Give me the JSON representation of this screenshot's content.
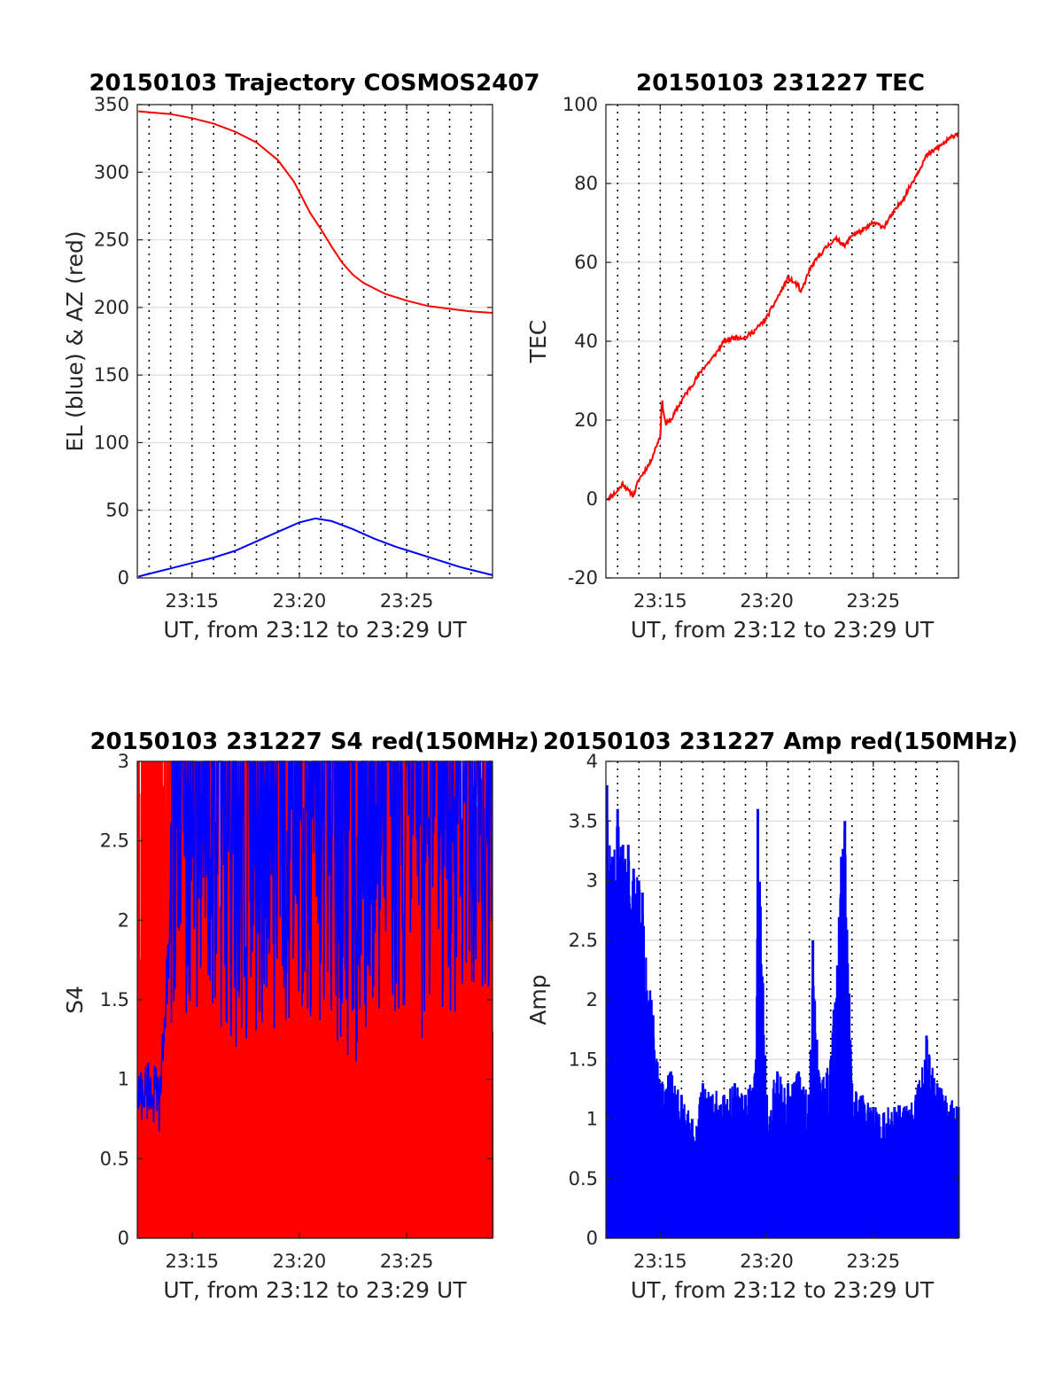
{
  "figure": {
    "colors": {
      "red": "#ff0000",
      "blue": "#0000ff",
      "grid": "#dcdcdc",
      "axis": "#262626"
    }
  },
  "chart_data": [
    {
      "id": "trajectory",
      "type": "line",
      "title": "20150103 Trajectory COSMOS2407",
      "xlabel": "UT, from 23:12 to 23:29 UT",
      "ylabel": "EL (blue) & AZ (red)",
      "xlim": [
        "23:12:27",
        "23:29:00"
      ],
      "ylim": [
        0,
        350
      ],
      "yticks": [
        0,
        50,
        100,
        150,
        200,
        250,
        300,
        350
      ],
      "ytick_labels": [
        "0",
        "50",
        "100",
        "150",
        "200",
        "250",
        "300",
        "350"
      ],
      "xticks": [
        "23:15",
        "23:20",
        "23:25"
      ],
      "minute_marks": [
        "23:13",
        "23:14",
        "23:15",
        "23:16",
        "23:17",
        "23:18",
        "23:19",
        "23:20",
        "23:21",
        "23:22",
        "23:23",
        "23:24",
        "23:25",
        "23:26",
        "23:27",
        "23:28"
      ],
      "grid": true,
      "series": [
        {
          "name": "EL",
          "color": "#0000ff",
          "x": [
            "23:12:30",
            "23:13:00",
            "23:14:00",
            "23:15:00",
            "23:16:00",
            "23:17:00",
            "23:18:00",
            "23:19:00",
            "23:20:00",
            "23:20:45",
            "23:21:30",
            "23:22:30",
            "23:23:30",
            "23:24:30",
            "23:25:30",
            "23:26:30",
            "23:27:30",
            "23:28:30",
            "23:29:00"
          ],
          "y": [
            1,
            3,
            7,
            11,
            15,
            20,
            27,
            34,
            41,
            44,
            42,
            36,
            29,
            23,
            18,
            13,
            8,
            4,
            2
          ]
        },
        {
          "name": "AZ",
          "color": "#ff0000",
          "x": [
            "23:12:30",
            "23:14:00",
            "23:15:00",
            "23:16:00",
            "23:17:00",
            "23:18:00",
            "23:19:00",
            "23:19:45",
            "23:20:30",
            "23:21:00",
            "23:21:30",
            "23:22:00",
            "23:22:30",
            "23:23:00",
            "23:24:00",
            "23:25:00",
            "23:26:00",
            "23:27:00",
            "23:28:00",
            "23:29:00"
          ],
          "y": [
            345,
            343,
            340,
            336,
            330,
            322,
            309,
            293,
            270,
            258,
            245,
            233,
            224,
            218,
            210,
            205,
            201,
            199,
            197,
            196
          ]
        }
      ]
    },
    {
      "id": "tec",
      "type": "line",
      "title": "20150103 231227 TEC",
      "xlabel": "UT, from 23:12 to 23:29 UT",
      "ylabel": "TEC",
      "xlim": [
        "23:12:27",
        "23:29:00"
      ],
      "ylim": [
        -20,
        100
      ],
      "yticks": [
        -20,
        0,
        20,
        40,
        60,
        80,
        100
      ],
      "ytick_labels": [
        "-20",
        "0",
        "20",
        "40",
        "60",
        "80",
        "100"
      ],
      "xticks": [
        "23:15",
        "23:20",
        "23:25"
      ],
      "minute_marks": [
        "23:13",
        "23:14",
        "23:15",
        "23:16",
        "23:17",
        "23:18",
        "23:19",
        "23:20",
        "23:21",
        "23:22",
        "23:23",
        "23:24",
        "23:25",
        "23:26",
        "23:27",
        "23:28"
      ],
      "grid": true,
      "series": [
        {
          "name": "TEC",
          "color": "#ff0000",
          "x": [
            "23:12:30",
            "23:13:00",
            "23:13:15",
            "23:13:30",
            "23:13:45",
            "23:14:00",
            "23:14:30",
            "23:15:00",
            "23:15:05",
            "23:15:15",
            "23:15:30",
            "23:16:00",
            "23:16:30",
            "23:17:00",
            "23:17:30",
            "23:18:00",
            "23:18:30",
            "23:19:00",
            "23:19:30",
            "23:20:00",
            "23:20:30",
            "23:21:00",
            "23:21:30",
            "23:21:35",
            "23:22:00",
            "23:22:30",
            "23:23:00",
            "23:23:20",
            "23:23:40",
            "23:24:00",
            "23:24:30",
            "23:25:00",
            "23:25:30",
            "23:26:00",
            "23:26:30",
            "23:27:00",
            "23:27:30",
            "23:28:00",
            "23:28:30",
            "23:29:00"
          ],
          "y": [
            0,
            2,
            4,
            2,
            1,
            5,
            9,
            16,
            25,
            19,
            20,
            25,
            29,
            33,
            36,
            40,
            41,
            41,
            43,
            46,
            51,
            56,
            54,
            52,
            58,
            62,
            65,
            66,
            64,
            67,
            68,
            70,
            69,
            73,
            77,
            82,
            87,
            89,
            91,
            93
          ]
        }
      ]
    },
    {
      "id": "s4",
      "type": "line",
      "title": "20150103 231227 S4 red(150MHz)",
      "xlabel": "UT, from 23:12 to 23:29 UT",
      "ylabel": "S4",
      "xlim": [
        "23:12:27",
        "23:29:00"
      ],
      "ylim": [
        0,
        3
      ],
      "yticks": [
        0,
        0.5,
        1,
        1.5,
        2,
        2.5,
        3
      ],
      "ytick_labels": [
        "0",
        "0.5",
        "1",
        "1.5",
        "2",
        "2.5",
        "3"
      ],
      "xticks": [
        "23:15",
        "23:20",
        "23:25"
      ],
      "minute_marks": [
        "23:13",
        "23:14",
        "23:15",
        "23:16",
        "23:17",
        "23:18",
        "23:19",
        "23:20",
        "23:21",
        "23:22",
        "23:23",
        "23:24",
        "23:25",
        "23:26",
        "23:27",
        "23:28"
      ],
      "grid": true,
      "series": [
        {
          "name": "red (150MHz)",
          "color": "#ff0000",
          "x": [
            "23:12:30",
            "23:13:00",
            "23:13:30",
            "23:14:00",
            "23:15:00",
            "23:16:00",
            "23:17:00",
            "23:18:00",
            "23:19:00",
            "23:20:00",
            "23:21:00",
            "23:22:00",
            "23:23:00",
            "23:24:00",
            "23:25:00",
            "23:26:00",
            "23:27:00",
            "23:28:00",
            "23:29:00"
          ],
          "y": [
            3,
            3,
            3,
            3,
            3,
            3,
            3,
            3,
            3,
            3,
            3,
            3,
            3,
            3,
            3,
            3,
            3,
            3,
            3
          ]
        },
        {
          "name": "blue",
          "color": "#0000ff",
          "x": [
            "23:12:30",
            "23:13:00",
            "23:13:30",
            "23:14:00",
            "23:15:00",
            "23:16:00",
            "23:17:00",
            "23:18:00",
            "23:19:00",
            "23:20:00",
            "23:21:00",
            "23:22:00",
            "23:23:00",
            "23:24:00",
            "23:25:00",
            "23:26:00",
            "23:27:00",
            "23:28:00",
            "23:29:00"
          ],
          "y": [
            0.9,
            0.95,
            0.85,
            2.0,
            2.3,
            2.2,
            2.0,
            2.1,
            2.1,
            2.2,
            2.1,
            2.0,
            1.9,
            2.2,
            2.2,
            2.0,
            2.2,
            2.3,
            2.3
          ]
        }
      ]
    },
    {
      "id": "amp",
      "type": "line",
      "title": "20150103 231227 Amp red(150MHz)",
      "xlabel": "UT, from 23:12 to 23:29 UT",
      "ylabel": "Amp",
      "xlim": [
        "23:12:27",
        "23:29:00"
      ],
      "ylim": [
        0,
        4
      ],
      "yticks": [
        0,
        0.5,
        1,
        1.5,
        2,
        2.5,
        3,
        3.5,
        4
      ],
      "ytick_labels": [
        "0",
        "0.5",
        "1",
        "1.5",
        "2",
        "2.5",
        "3",
        "3.5",
        "4"
      ],
      "xticks": [
        "23:15",
        "23:20",
        "23:25"
      ],
      "minute_marks": [
        "23:13",
        "23:14",
        "23:15",
        "23:16",
        "23:17",
        "23:18",
        "23:19",
        "23:20",
        "23:21",
        "23:22",
        "23:23",
        "23:24",
        "23:25",
        "23:26",
        "23:27",
        "23:28"
      ],
      "grid": true,
      "series": [
        {
          "name": "Amp",
          "color": "#0000ff",
          "x": [
            "23:12:30",
            "23:12:45",
            "23:13:00",
            "23:13:15",
            "23:13:30",
            "23:13:45",
            "23:14:00",
            "23:14:10",
            "23:15:00",
            "23:15:30",
            "23:16:00",
            "23:16:30",
            "23:17:00",
            "23:18:00",
            "23:18:30",
            "23:19:00",
            "23:19:30",
            "23:19:35",
            "23:20:00",
            "23:20:30",
            "23:21:00",
            "23:21:30",
            "23:22:00",
            "23:22:10",
            "23:22:30",
            "23:23:00",
            "23:23:30",
            "23:23:40",
            "23:24:00",
            "23:24:30",
            "23:25:00",
            "23:26:00",
            "23:27:00",
            "23:27:30",
            "23:28:00",
            "23:29:00"
          ],
          "y": [
            3.8,
            3.2,
            3.6,
            3.3,
            3.3,
            3.1,
            3.0,
            2.9,
            1.3,
            1.4,
            1.2,
            1.0,
            1.3,
            1.2,
            1.3,
            1.2,
            1.5,
            3.6,
            1.2,
            1.4,
            1.3,
            1.4,
            1.2,
            2.5,
            1.3,
            1.5,
            3.2,
            3.5,
            1.3,
            1.2,
            1.1,
            1.1,
            1.2,
            1.7,
            1.3,
            1.1
          ]
        }
      ]
    }
  ]
}
